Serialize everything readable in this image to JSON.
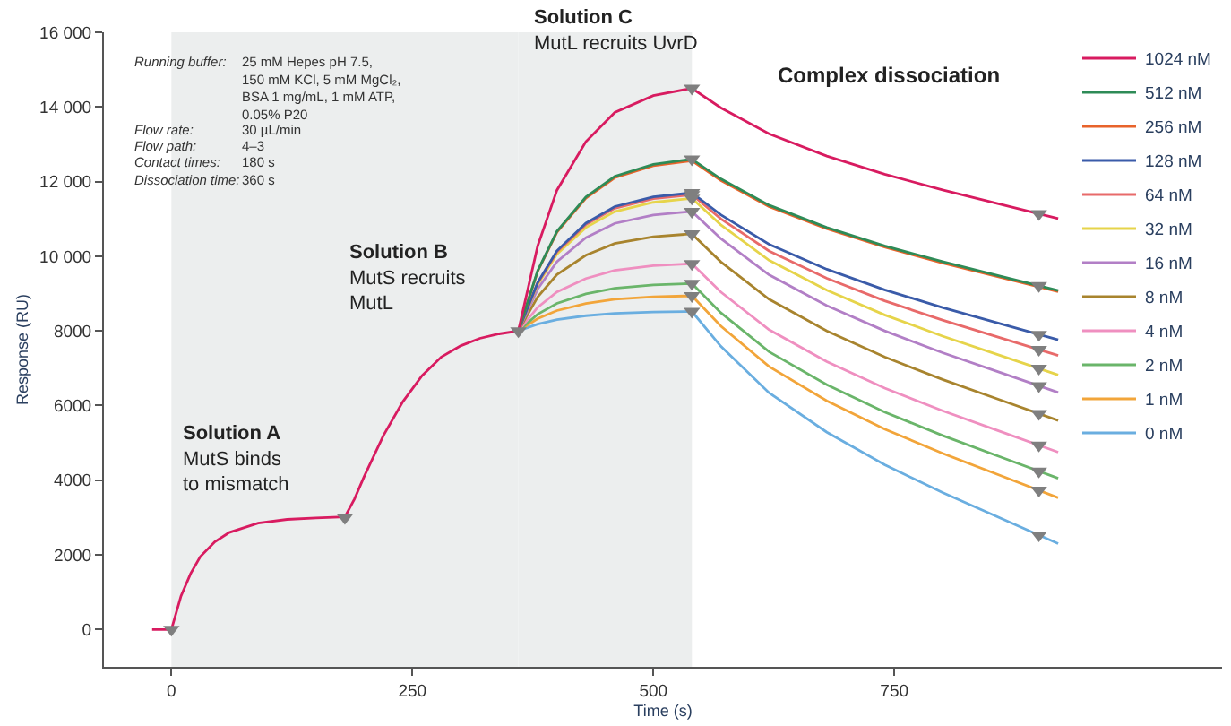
{
  "chart_data": {
    "type": "line",
    "xlabel": "Time (s)",
    "ylabel": "Response (RU)",
    "x": [
      -20,
      0,
      10,
      20,
      30,
      45,
      60,
      90,
      120,
      150,
      180,
      190,
      200,
      220,
      240,
      260,
      280,
      300,
      320,
      340,
      360,
      380,
      400,
      430,
      460,
      500,
      540,
      570,
      620,
      680,
      740,
      800,
      860,
      920
    ],
    "series": [
      {
        "name": "1024 nM",
        "color": "#d81b60",
        "values": [
          0,
          0,
          900,
          1500,
          1950,
          2350,
          2600,
          2850,
          2950,
          2990,
          3020,
          3500,
          4100,
          5200,
          6100,
          6800,
          7300,
          7600,
          7800,
          7920,
          8000,
          10275,
          11770,
          13070,
          13850,
          14305,
          14500,
          13977,
          13279,
          12685,
          12197,
          11778,
          11394,
          11010
        ]
      },
      {
        "name": "512 nM",
        "color": "#2e8b57",
        "values": [
          null,
          null,
          null,
          null,
          null,
          null,
          null,
          null,
          null,
          null,
          null,
          null,
          null,
          null,
          null,
          null,
          null,
          null,
          null,
          null,
          8000,
          9610,
          10668,
          11588,
          12140,
          12462,
          12600,
          12072,
          11368,
          10770,
          10277,
          9854,
          9467,
          9080
        ]
      },
      {
        "name": "256 nM",
        "color": "#e8632b",
        "values": [
          null,
          null,
          null,
          null,
          null,
          null,
          null,
          null,
          null,
          null,
          null,
          null,
          null,
          null,
          null,
          null,
          null,
          null,
          null,
          null,
          8000,
          9596,
          10645,
          11557,
          12104,
          12423,
          12560,
          12034,
          11332,
          10735,
          10243,
          9822,
          9436,
          9050
        ]
      },
      {
        "name": "128 nM",
        "color": "#3a5ba9",
        "values": [
          null,
          null,
          null,
          null,
          null,
          null,
          null,
          null,
          null,
          null,
          null,
          null,
          null,
          null,
          null,
          null,
          null,
          null,
          null,
          null,
          8000,
          9295,
          10146,
          10886,
          11330,
          11589,
          11700,
          11109,
          10321,
          9651,
          9100,
          8627,
          8193,
          7760
        ]
      },
      {
        "name": "64 nM",
        "color": "#e86a6a",
        "values": [
          null,
          null,
          null,
          null,
          null,
          null,
          null,
          null,
          null,
          null,
          null,
          null,
          null,
          null,
          null,
          null,
          null,
          null,
          null,
          null,
          8000,
          9278,
          10117,
          10847,
          11285,
          11541,
          11650,
          11004,
          10142,
          9409,
          8805,
          8288,
          7814,
          7340
        ]
      },
      {
        "name": "32 nM",
        "color": "#e6d44a",
        "values": [
          null,
          null,
          null,
          null,
          null,
          null,
          null,
          null,
          null,
          null,
          null,
          null,
          null,
          null,
          null,
          null,
          null,
          null,
          null,
          null,
          8000,
          9243,
          10059,
          10769,
          11195,
          11444,
          11550,
          10841,
          9895,
          9090,
          8428,
          7861,
          7340,
          6820
        ]
      },
      {
        "name": "16 nM",
        "color": "#b27fc6",
        "values": [
          null,
          null,
          null,
          null,
          null,
          null,
          null,
          null,
          null,
          null,
          null,
          null,
          null,
          null,
          null,
          null,
          null,
          null,
          null,
          null,
          8000,
          9120,
          9856,
          10496,
          10880,
          11104,
          11200,
          10473,
          9503,
          8678,
          8001,
          7417,
          6884,
          6350
        ]
      },
      {
        "name": "8 nM",
        "color": "#a8842e",
        "values": [
          null,
          null,
          null,
          null,
          null,
          null,
          null,
          null,
          null,
          null,
          null,
          null,
          null,
          null,
          null,
          null,
          null,
          null,
          null,
          null,
          8000,
          8910,
          9508,
          10028,
          10340,
          10522,
          10600,
          9850,
          8850,
          8000,
          7300,
          6700,
          6150,
          5600
        ]
      },
      {
        "name": "4 nM",
        "color": "#ef8fc0",
        "values": [
          null,
          null,
          null,
          null,
          null,
          null,
          null,
          null,
          null,
          null,
          null,
          null,
          null,
          null,
          null,
          null,
          null,
          null,
          null,
          null,
          8000,
          8630,
          9044,
          9404,
          9620,
          9746,
          9800,
          9043,
          8033,
          7174,
          6467,
          5861,
          5306,
          4750
        ]
      },
      {
        "name": "2 nM",
        "color": "#6ab56a",
        "values": [
          null,
          null,
          null,
          null,
          null,
          null,
          null,
          null,
          null,
          null,
          null,
          null,
          null,
          null,
          null,
          null,
          null,
          null,
          null,
          null,
          8000,
          8445,
          8737,
          8991,
          9143,
          9232,
          9270,
          8487,
          7443,
          6556,
          5825,
          5198,
          4624,
          4050
        ]
      },
      {
        "name": "1 nM",
        "color": "#f2a53a",
        "values": [
          null,
          null,
          null,
          null,
          null,
          null,
          null,
          null,
          null,
          null,
          null,
          null,
          null,
          null,
          null,
          null,
          null,
          null,
          null,
          null,
          8000,
          8329,
          8545,
          8733,
          8846,
          8912,
          8940,
          8129,
          7047,
          6127,
          5369,
          4720,
          4125,
          3530
        ]
      },
      {
        "name": "0 nM",
        "color": "#6aaee0",
        "values": [
          null,
          null,
          null,
          null,
          null,
          null,
          null,
          null,
          null,
          null,
          null,
          null,
          null,
          null,
          null,
          null,
          null,
          null,
          null,
          null,
          8000,
          8182,
          8302,
          8406,
          8468,
          8504,
          8520,
          7587,
          6343,
          5286,
          4415,
          3668,
          2984,
          2300
        ]
      },
      {
        "type": "scatter",
        "marker": "triangle",
        "color": "#7f7f7f",
        "x": [
          0,
          180,
          360,
          540,
          540,
          540,
          540,
          540,
          540,
          540,
          540,
          540,
          540,
          540,
          900,
          900,
          900,
          900,
          900,
          900,
          900,
          900,
          900,
          900,
          900
        ],
        "values": [
          0,
          3000,
          8000,
          14500,
          12600,
          11700,
          11650,
          11550,
          11200,
          10600,
          9800,
          9270,
          8940,
          8520,
          11138,
          9209,
          7904,
          7498,
          6993,
          6528,
          5783,
          4935,
          4241,
          3728,
          2528
        ]
      }
    ],
    "bands": [
      {
        "axis": "x",
        "from": 0,
        "to": 180,
        "color": "#eceeee"
      },
      {
        "axis": "x",
        "from": 180,
        "to": 360,
        "color": "#eceeee"
      },
      {
        "axis": "x",
        "from": 360,
        "to": 540,
        "color": "#eceeee"
      }
    ],
    "annotations": [
      "Solution A\nMutS binds\nto mismatch",
      {
        "text": "Solution B\nMutS recruits\nMutL",
        "x": 181,
        "y": 10500
      },
      {
        "text": "Solution C\nMutL recruits UvrD",
        "x": 373,
        "y": 16000
      },
      "Complex dissociation",
      "Running buffer: 25 mM Hepes pH 7.5,\n150 mM KCl, 5 mM MgCl₂,\nBSA 1 mg/mL, 1 mM ATP,\n0.05% P20",
      "Flow rate: 30 µL/min",
      "Flow path: 4–3",
      "Contact times: 180 s",
      "Dissociation time: 360 s"
    ],
    "xlim": [
      -70,
      1090
    ],
    "xticks": [
      0,
      250,
      500,
      750
    ],
    "ylim": [
      -1000,
      16000
    ],
    "yticks": [
      0,
      2000,
      4000,
      6000,
      8000,
      {
        "value": 10000,
        "label": "10 000"
      },
      {
        "value": 12000,
        "label": "12 000"
      },
      {
        "value": 14000,
        "label": "14 000"
      },
      {
        "value": 16000,
        "label": "16 000"
      }
    ],
    "grid": false,
    "legend": "top right",
    "marker": "none",
    "line_style": "solid"
  }
}
